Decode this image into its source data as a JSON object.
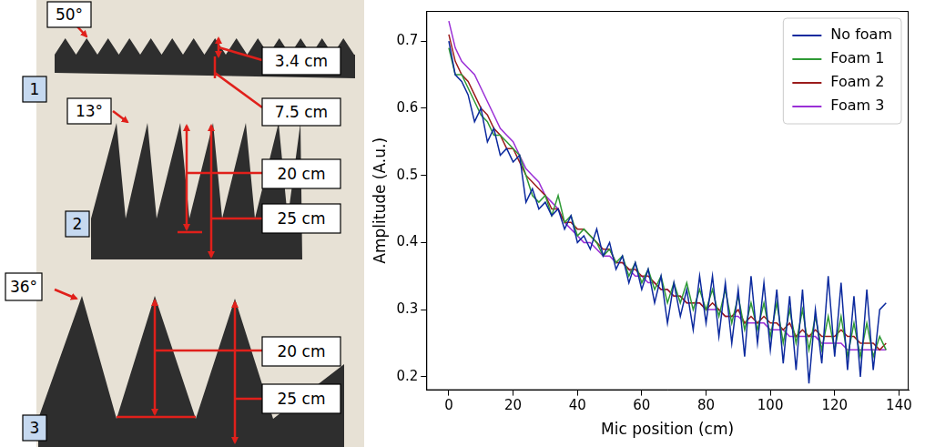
{
  "diagram": {
    "pieces": [
      {
        "label": "1",
        "angle": "50°",
        "dimensions": [
          "3.4 cm",
          "7.5 cm"
        ]
      },
      {
        "label": "2",
        "angle": "13°",
        "dimensions": [
          "20 cm",
          "25 cm"
        ]
      },
      {
        "label": "3",
        "angle": "36°",
        "dimensions": [
          "20 cm",
          "25 cm"
        ]
      }
    ]
  },
  "chart_data": {
    "type": "line",
    "x_label": "Mic position (cm)",
    "y_label": "Amplitude (A.u.)",
    "x": [
      0,
      2,
      4,
      6,
      8,
      10,
      12,
      14,
      16,
      18,
      20,
      22,
      24,
      26,
      28,
      30,
      32,
      34,
      36,
      38,
      40,
      42,
      44,
      46,
      48,
      50,
      52,
      54,
      56,
      58,
      60,
      62,
      64,
      66,
      68,
      70,
      72,
      74,
      76,
      78,
      80,
      82,
      84,
      86,
      88,
      90,
      92,
      94,
      96,
      98,
      100,
      102,
      104,
      106,
      108,
      110,
      112,
      114,
      116,
      118,
      120,
      122,
      124,
      126,
      128,
      130,
      132,
      134,
      136
    ],
    "series": [
      {
        "name": "No foam",
        "color": "#0c2a9e",
        "values": [
          0.7,
          0.65,
          0.64,
          0.62,
          0.58,
          0.6,
          0.55,
          0.57,
          0.53,
          0.54,
          0.52,
          0.53,
          0.46,
          0.48,
          0.45,
          0.46,
          0.44,
          0.45,
          0.42,
          0.44,
          0.4,
          0.41,
          0.39,
          0.42,
          0.38,
          0.4,
          0.36,
          0.38,
          0.34,
          0.37,
          0.33,
          0.36,
          0.31,
          0.35,
          0.28,
          0.34,
          0.29,
          0.33,
          0.27,
          0.35,
          0.28,
          0.35,
          0.26,
          0.34,
          0.25,
          0.33,
          0.23,
          0.35,
          0.25,
          0.34,
          0.24,
          0.33,
          0.22,
          0.32,
          0.21,
          0.33,
          0.19,
          0.3,
          0.22,
          0.35,
          0.23,
          0.34,
          0.21,
          0.32,
          0.2,
          0.33,
          0.21,
          0.3,
          0.31
        ]
      },
      {
        "name": "Foam 1",
        "color": "#2e9a35",
        "values": [
          0.69,
          0.65,
          0.65,
          0.63,
          0.61,
          0.59,
          0.58,
          0.56,
          0.56,
          0.55,
          0.54,
          0.53,
          0.5,
          0.47,
          0.46,
          0.47,
          0.44,
          0.47,
          0.43,
          0.44,
          0.41,
          0.42,
          0.41,
          0.4,
          0.38,
          0.39,
          0.37,
          0.38,
          0.35,
          0.37,
          0.34,
          0.36,
          0.33,
          0.35,
          0.31,
          0.34,
          0.31,
          0.34,
          0.3,
          0.33,
          0.3,
          0.33,
          0.29,
          0.33,
          0.28,
          0.32,
          0.27,
          0.31,
          0.27,
          0.31,
          0.26,
          0.31,
          0.25,
          0.3,
          0.25,
          0.3,
          0.24,
          0.29,
          0.24,
          0.29,
          0.24,
          0.29,
          0.23,
          0.28,
          0.23,
          0.28,
          0.23,
          0.26,
          0.24
        ]
      },
      {
        "name": "Foam 2",
        "color": "#9b1c1c",
        "values": [
          0.71,
          0.67,
          0.65,
          0.64,
          0.62,
          0.6,
          0.59,
          0.57,
          0.56,
          0.54,
          0.54,
          0.52,
          0.5,
          0.49,
          0.48,
          0.47,
          0.45,
          0.45,
          0.43,
          0.43,
          0.42,
          0.42,
          0.41,
          0.4,
          0.39,
          0.39,
          0.37,
          0.37,
          0.36,
          0.36,
          0.35,
          0.35,
          0.34,
          0.33,
          0.33,
          0.32,
          0.32,
          0.31,
          0.31,
          0.31,
          0.3,
          0.31,
          0.3,
          0.29,
          0.29,
          0.3,
          0.28,
          0.29,
          0.28,
          0.29,
          0.28,
          0.28,
          0.27,
          0.28,
          0.26,
          0.27,
          0.26,
          0.27,
          0.26,
          0.26,
          0.26,
          0.27,
          0.26,
          0.26,
          0.25,
          0.25,
          0.25,
          0.24,
          0.25
        ]
      },
      {
        "name": "Foam 3",
        "color": "#9a2fd6",
        "values": [
          0.73,
          0.69,
          0.67,
          0.66,
          0.65,
          0.63,
          0.61,
          0.59,
          0.57,
          0.56,
          0.55,
          0.53,
          0.51,
          0.5,
          0.49,
          0.47,
          0.46,
          0.45,
          0.43,
          0.42,
          0.41,
          0.4,
          0.4,
          0.39,
          0.38,
          0.38,
          0.37,
          0.37,
          0.36,
          0.35,
          0.35,
          0.34,
          0.34,
          0.33,
          0.33,
          0.32,
          0.32,
          0.31,
          0.31,
          0.31,
          0.3,
          0.3,
          0.3,
          0.29,
          0.29,
          0.29,
          0.28,
          0.28,
          0.28,
          0.28,
          0.27,
          0.27,
          0.27,
          0.26,
          0.26,
          0.26,
          0.26,
          0.26,
          0.25,
          0.25,
          0.25,
          0.25,
          0.24,
          0.24,
          0.24,
          0.24,
          0.24,
          0.24,
          0.24
        ]
      }
    ],
    "xlim": [
      -7,
      143
    ],
    "xticks": [
      0,
      20,
      40,
      60,
      80,
      100,
      120,
      140
    ],
    "ylim": [
      0.18,
      0.745
    ],
    "yticks": [
      0.2,
      0.3,
      0.4,
      0.5,
      0.6,
      0.7
    ],
    "grid": false,
    "legend": "upper right"
  }
}
